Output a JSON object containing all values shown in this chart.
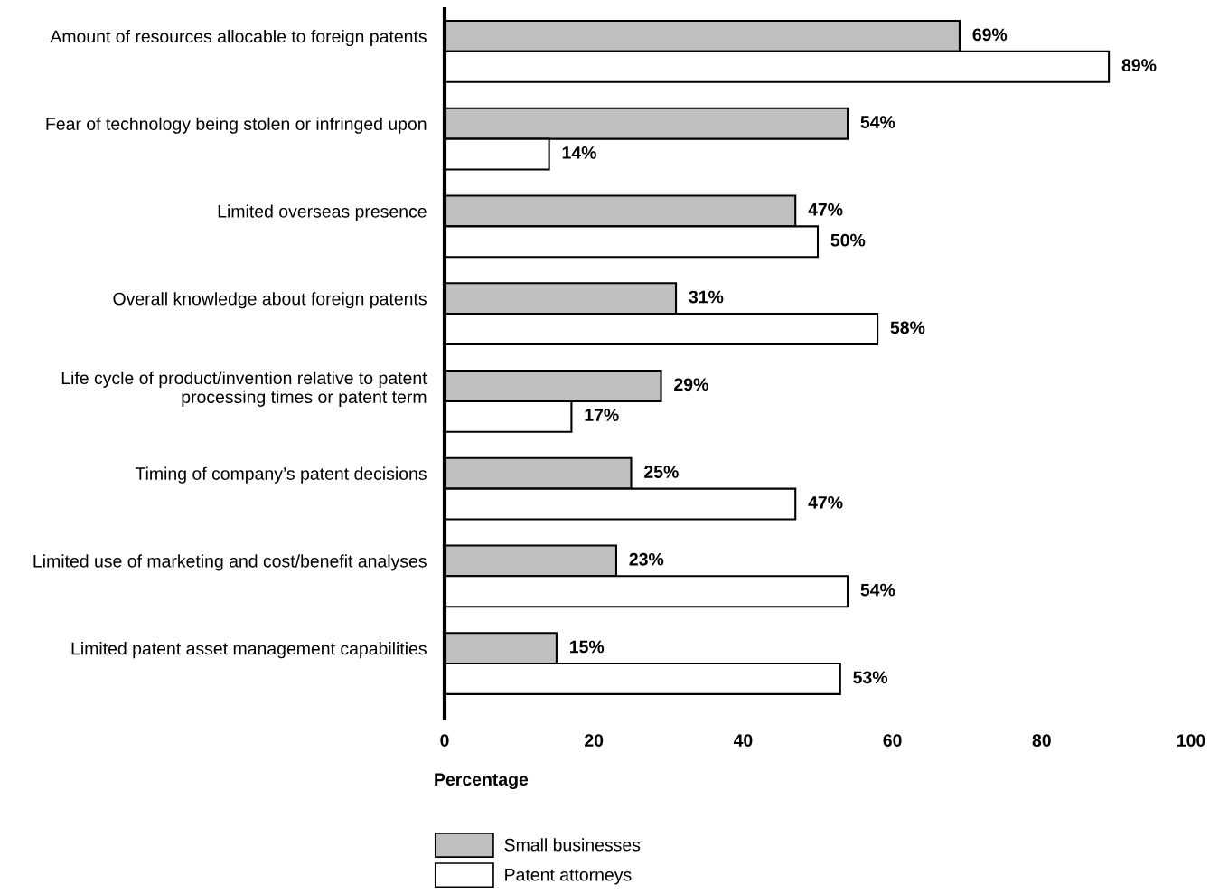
{
  "chart_data": {
    "type": "bar",
    "orientation": "horizontal",
    "xlabel": "Percentage",
    "categories": [
      "Amount of resources allocable to foreign patents",
      "Fear of technology being stolen or infringed upon",
      "Limited overseas presence",
      "Overall knowledge about foreign patents",
      "Life cycle of product/invention relative to patent\nprocessing times or patent term",
      "Timing of company’s patent decisions",
      "Limited use of marketing and cost/benefit analyses",
      "Limited patent asset management capabilities"
    ],
    "series": [
      {
        "name": "Small businesses",
        "color": "#bfbfbf",
        "values": [
          69,
          54,
          47,
          31,
          29,
          25,
          23,
          15
        ],
        "value_labels": [
          "69%",
          "54%",
          "47%",
          "31%",
          "29%",
          "25%",
          "23%",
          "15%"
        ]
      },
      {
        "name": "Patent attorneys",
        "color": "#ffffff",
        "values": [
          89,
          14,
          50,
          58,
          17,
          47,
          54,
          53
        ],
        "value_labels": [
          "89%",
          "14%",
          "50%",
          "58%",
          "17%",
          "47%",
          "54%",
          "53%"
        ]
      }
    ],
    "xlim": [
      0,
      100
    ],
    "xticks": [
      0,
      20,
      40,
      60,
      80,
      100
    ],
    "grid": false,
    "legend": "bottom"
  }
}
